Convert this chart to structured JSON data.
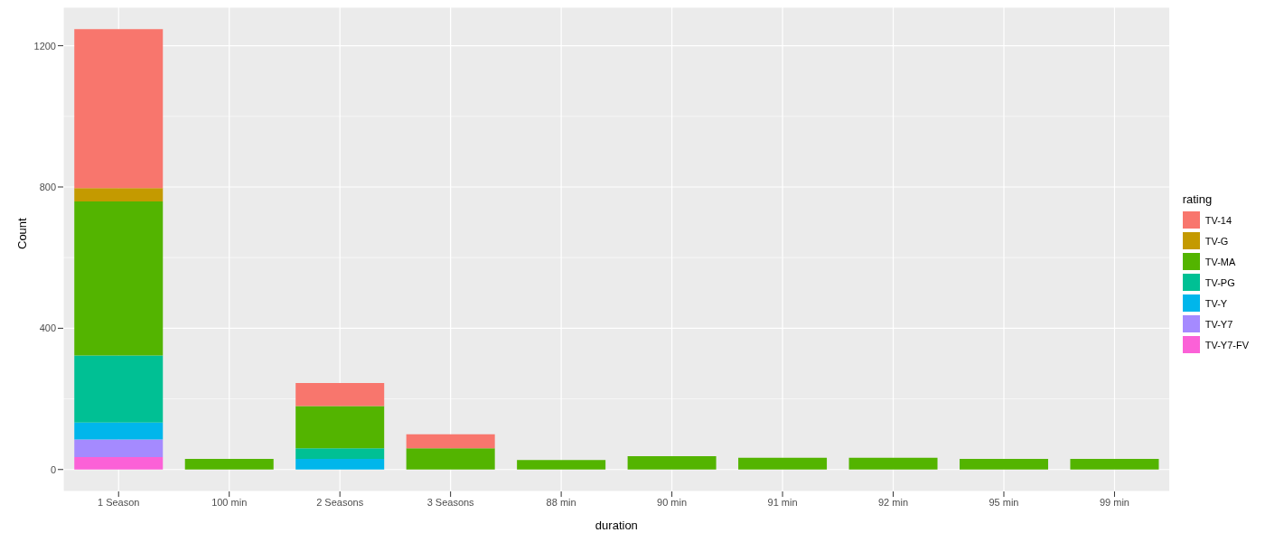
{
  "chart_data": {
    "type": "bar",
    "stacked": true,
    "xlabel": "duration",
    "ylabel": "Count",
    "legend_title": "rating",
    "legend": "right",
    "grid": true,
    "categories": [
      "1 Season",
      "100 min",
      "2 Seasons",
      "3 Seasons",
      "88 min",
      "90 min",
      "91 min",
      "92 min",
      "95 min",
      "99 min"
    ],
    "ylim": [
      -62,
      1309
    ],
    "yticks": [
      0,
      400,
      800,
      1200
    ],
    "series": [
      {
        "name": "TV-Y7-FV",
        "color": "#fb61d7",
        "values": [
          35,
          null,
          null,
          null,
          null,
          null,
          null,
          null,
          null,
          null
        ]
      },
      {
        "name": "TV-Y7",
        "color": "#a58aff",
        "values": [
          50,
          null,
          null,
          null,
          null,
          null,
          null,
          null,
          null,
          null
        ]
      },
      {
        "name": "TV-Y",
        "color": "#00b6eb",
        "values": [
          48,
          null,
          30,
          null,
          null,
          null,
          null,
          null,
          null,
          null
        ]
      },
      {
        "name": "TV-PG",
        "color": "#00c094",
        "values": [
          190,
          null,
          30,
          null,
          null,
          null,
          null,
          null,
          null,
          null
        ]
      },
      {
        "name": "TV-MA",
        "color": "#53b400",
        "values": [
          436,
          30,
          120,
          60,
          27,
          38,
          33,
          33,
          30,
          30
        ]
      },
      {
        "name": "TV-G",
        "color": "#c49a00",
        "values": [
          38,
          null,
          null,
          null,
          null,
          null,
          null,
          null,
          null,
          null
        ]
      },
      {
        "name": "TV-14",
        "color": "#f8766d",
        "values": [
          450,
          null,
          65,
          40,
          null,
          null,
          null,
          null,
          null,
          null
        ]
      }
    ]
  }
}
